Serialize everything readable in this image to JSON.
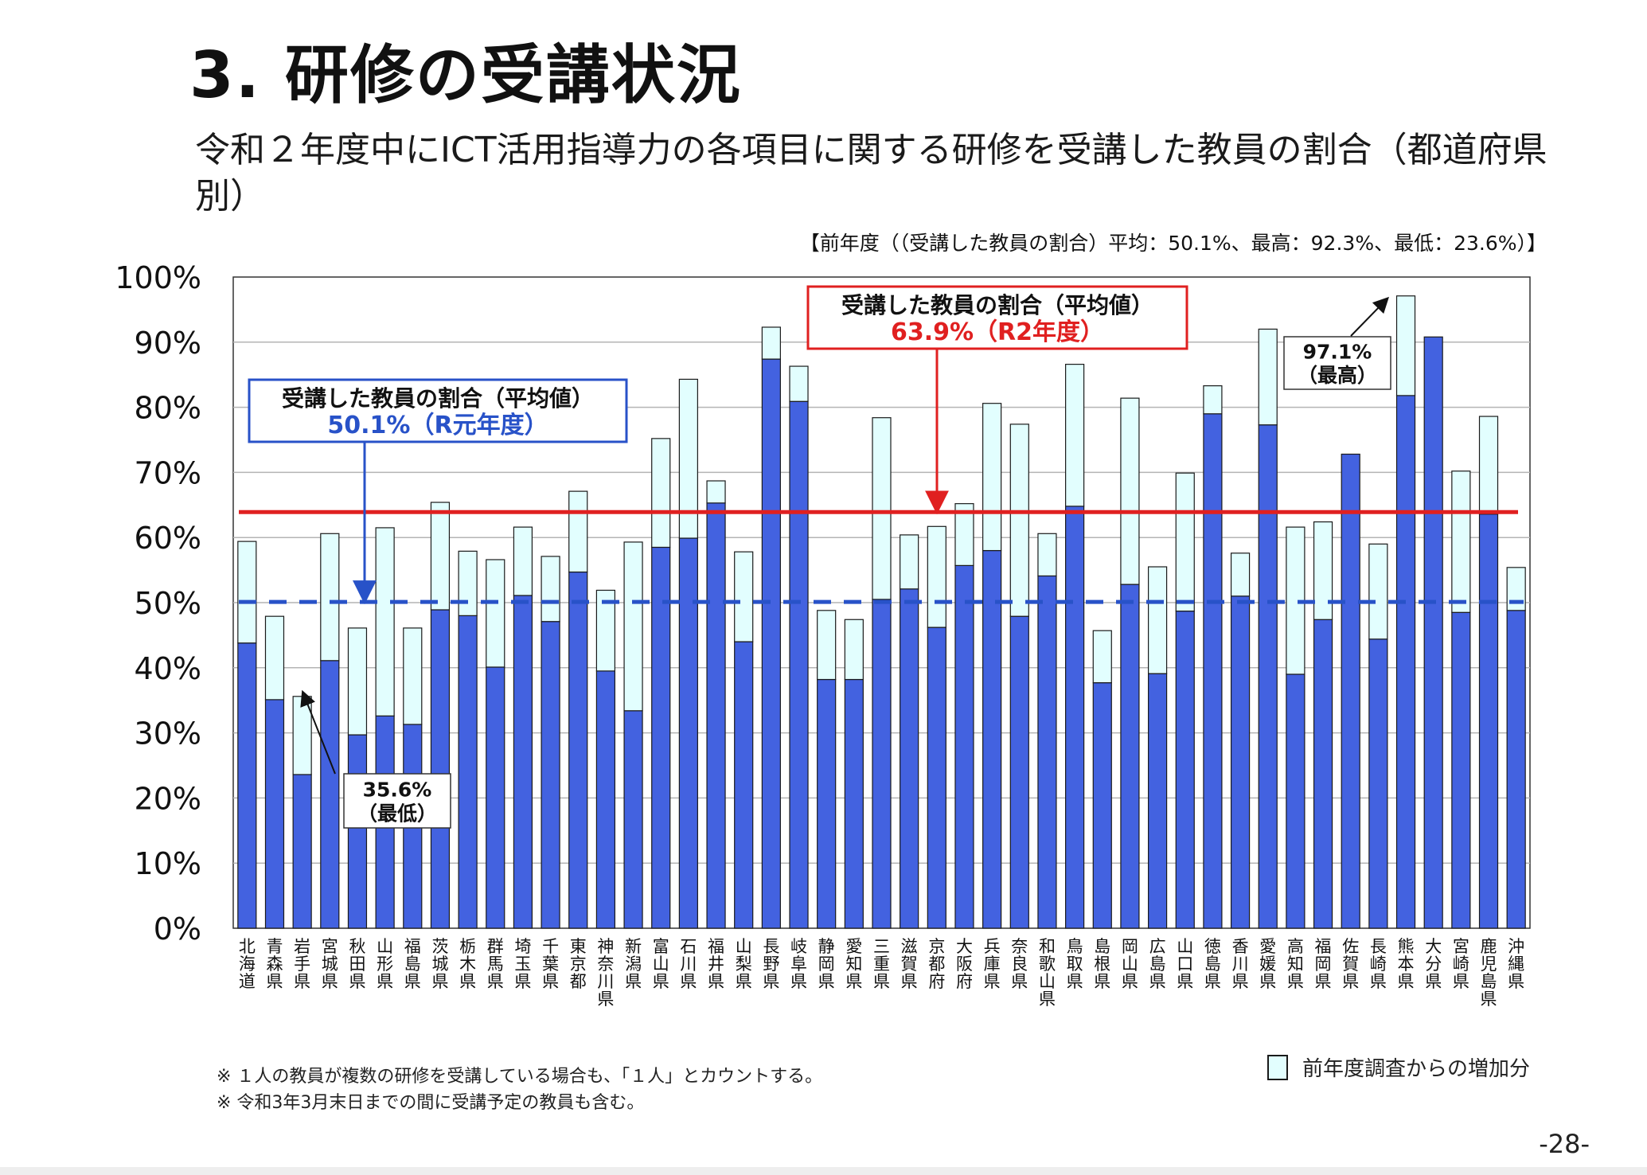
{
  "page": {
    "title": "3. 研修の受講状況",
    "subtitle": "令和２年度中にICT活用指導力の各項目に関する研修を受講した教員の割合（都道府県別）",
    "prev_note": "【前年度（（受講した教員の割合）平均：50.1%、最高：92.3%、最低：23.6%）】",
    "footnote1": "※ １人の教員が複数の研修を受講している場合も、「１人」とカウントする。",
    "footnote2": "※ 令和3年3月末日までの間に受講予定の教員も含む。",
    "page_number": "-28-",
    "legend_increase": "前年度調査からの増加分"
  },
  "chart_data": {
    "type": "bar",
    "stacked": true,
    "y_ticks": [
      "0%",
      "10%",
      "20%",
      "30%",
      "40%",
      "50%",
      "60%",
      "70%",
      "80%",
      "90%",
      "100%"
    ],
    "ylim": [
      0,
      100
    ],
    "grid": true,
    "categories": [
      "北海道",
      "青森県",
      "岩手県",
      "宮城県",
      "秋田県",
      "山形県",
      "福島県",
      "茨城県",
      "栃木県",
      "群馬県",
      "埼玉県",
      "千葉県",
      "東京都",
      "神奈川県",
      "新潟県",
      "富山県",
      "石川県",
      "福井県",
      "山梨県",
      "長野県",
      "岐阜県",
      "静岡県",
      "愛知県",
      "三重県",
      "滋賀県",
      "京都府",
      "大阪府",
      "兵庫県",
      "奈良県",
      "和歌山県",
      "鳥取県",
      "島根県",
      "岡山県",
      "広島県",
      "山口県",
      "徳島県",
      "香川県",
      "愛媛県",
      "高知県",
      "福岡県",
      "佐賀県",
      "長崎県",
      "熊本県",
      "大分県",
      "宮崎県",
      "鹿児島県",
      "沖縄県"
    ],
    "series": [
      {
        "values": [
          43.8,
          35.1,
          23.6,
          41.1,
          29.7,
          32.6,
          31.3,
          48.9,
          48.0,
          40.1,
          51.1,
          47.1,
          54.7,
          39.5,
          33.4,
          58.5,
          59.9,
          65.3,
          44.0,
          87.4,
          80.9,
          38.2,
          38.2,
          50.5,
          52.1,
          46.2,
          55.7,
          58.0,
          47.9,
          54.1,
          64.8,
          37.7,
          52.8,
          39.1,
          48.7,
          79.0,
          51.0,
          77.3,
          39.0,
          47.4,
          72.8,
          44.4,
          81.8,
          90.8,
          48.5,
          63.6,
          48.8
        ],
        "color": "#4362e0"
      },
      {
        "values": [
          15.6,
          12.8,
          12.0,
          19.5,
          16.4,
          28.9,
          14.8,
          16.5,
          9.9,
          16.5,
          10.5,
          10.0,
          12.4,
          12.4,
          25.9,
          16.7,
          24.4,
          3.4,
          13.8,
          4.9,
          5.4,
          10.6,
          9.2,
          27.9,
          8.3,
          15.5,
          9.5,
          22.6,
          29.5,
          6.5,
          21.8,
          8.0,
          28.6,
          16.4,
          21.2,
          4.3,
          6.6,
          14.7,
          22.6,
          15.0,
          0.0,
          14.6,
          15.3,
          0.0,
          21.7,
          15.0,
          6.6
        ],
        "color": "#e2fefe"
      }
    ],
    "reference_lines": [
      {
        "value": 63.9,
        "color": "#e02020",
        "style": "solid"
      },
      {
        "value": 50.1,
        "color": "#2852c8",
        "style": "dashed"
      }
    ],
    "annotations": {
      "r2_box": {
        "line1": "受講した教員の割合（平均値）",
        "line2": "63.9%（R2年度）",
        "color": "#e02020"
      },
      "r1_box": {
        "line1": "受講した教員の割合（平均値）",
        "line2": "50.1%（R元年度）",
        "color": "#2852c8"
      },
      "max_box": {
        "line1": "97.1%",
        "line2": "（最高）"
      },
      "min_box": {
        "line1": "35.6%",
        "line2": "（最低）"
      }
    }
  }
}
